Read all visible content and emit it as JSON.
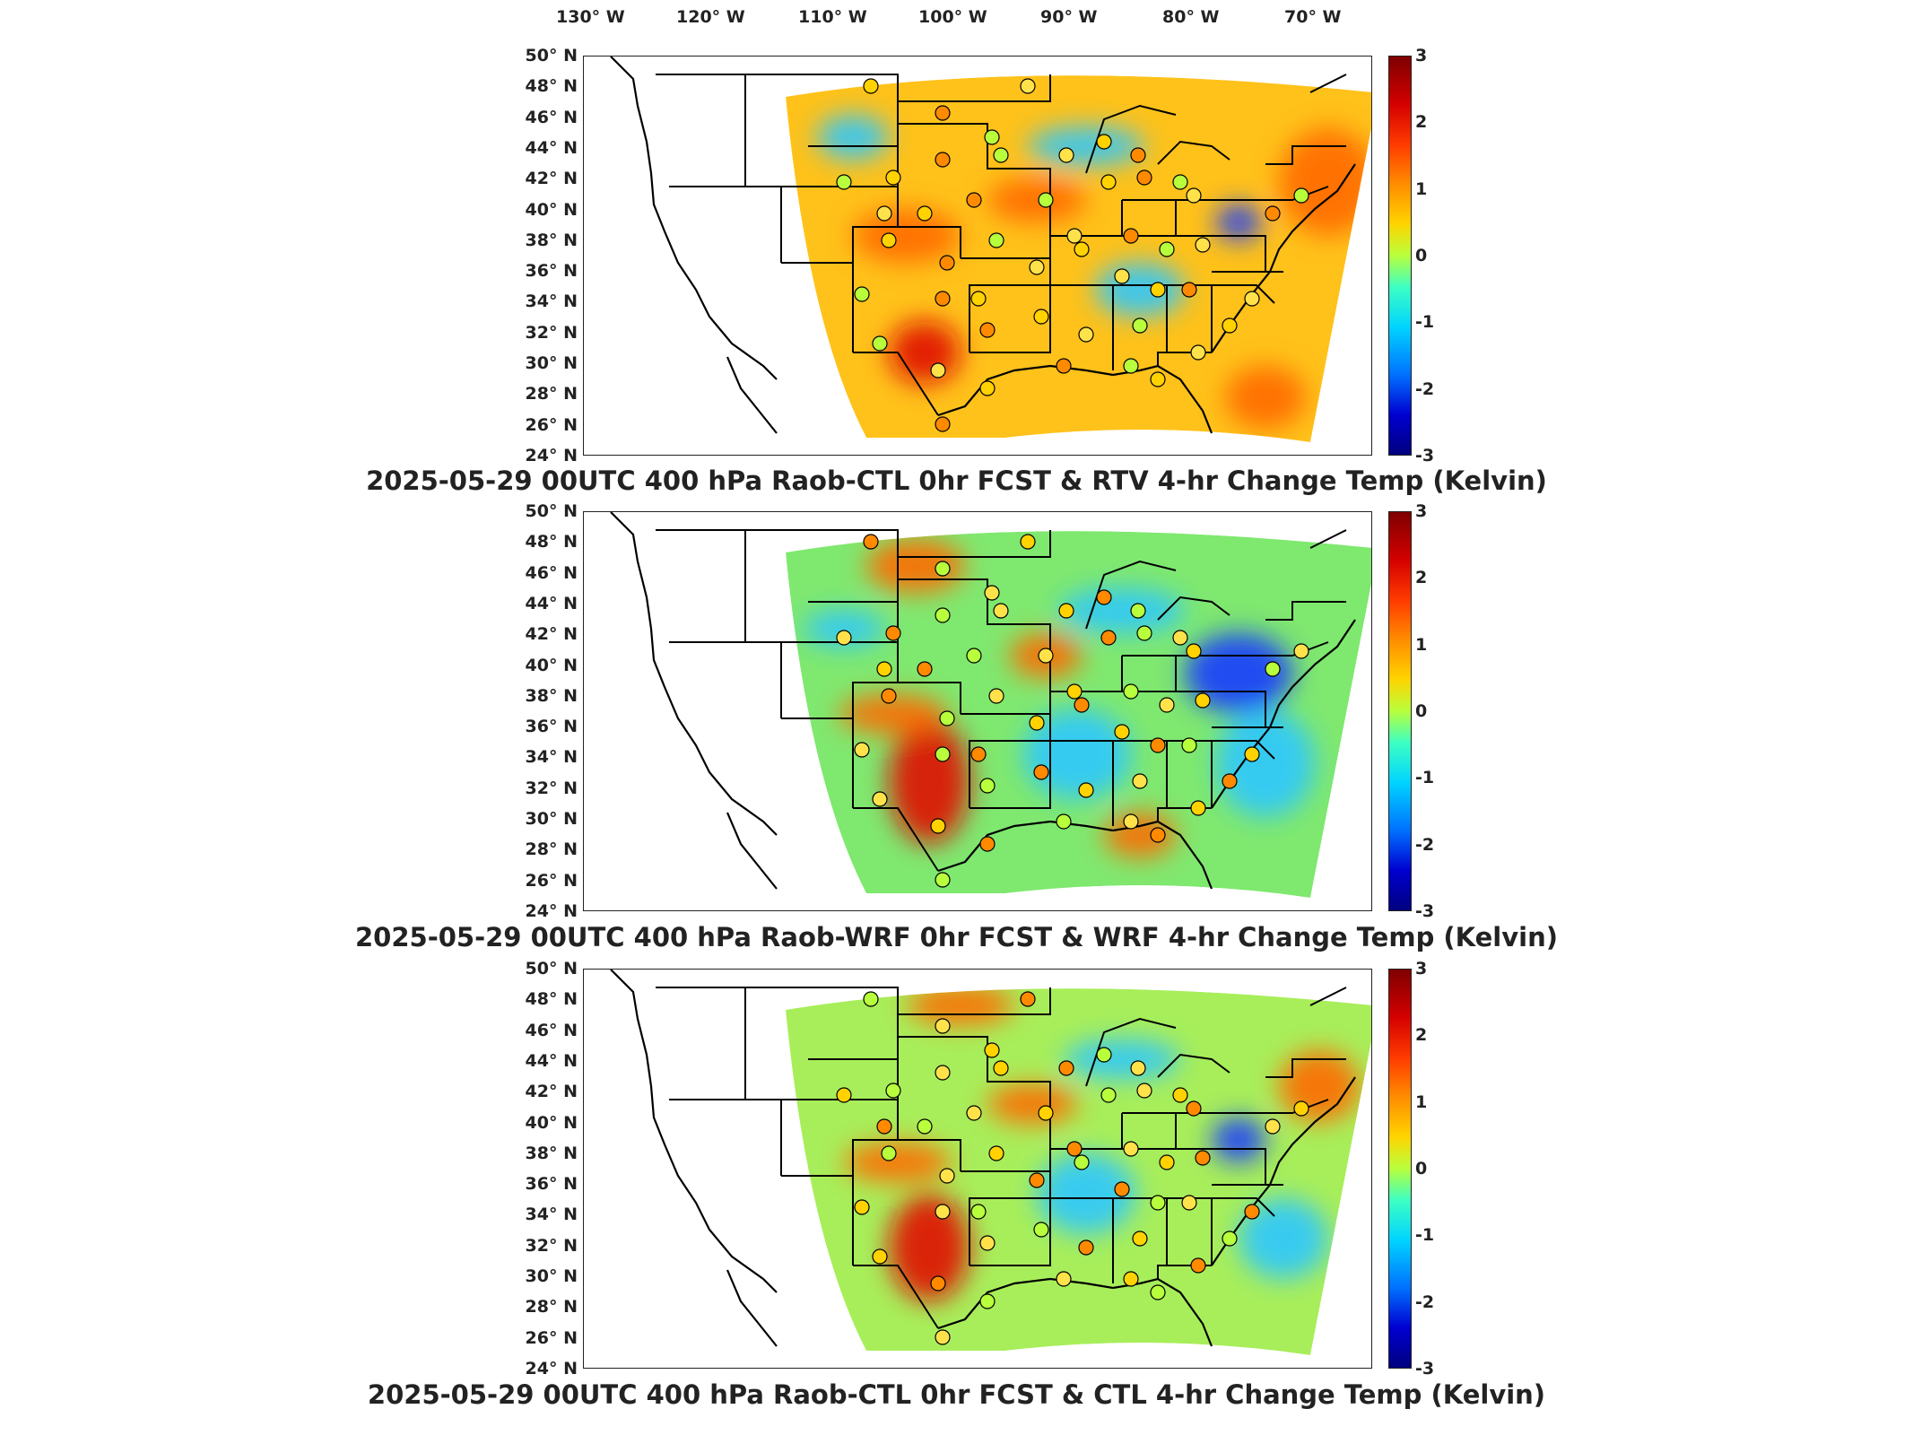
{
  "longitude_labels": [
    "130° W",
    "120° W",
    "110° W",
    "100° W",
    "90° W",
    "80° W",
    "70° W"
  ],
  "latitude_labels": [
    "50° N",
    "48° N",
    "46° N",
    "44° N",
    "42° N",
    "40° N",
    "38° N",
    "36° N",
    "34° N",
    "32° N",
    "30° N",
    "28° N",
    "26° N",
    "24° N"
  ],
  "colorbar": {
    "ticks": [
      "3",
      "2",
      "1",
      "0",
      "-1",
      "-2",
      "-3"
    ],
    "range": [
      -3,
      3
    ],
    "colormap": "jet",
    "colors": [
      "#7f0000",
      "#ff3a00",
      "#ffd400",
      "#b8ff3c",
      "#00d4ff",
      "#0070ff",
      "#00007f"
    ]
  },
  "panels": [
    {
      "title": "2025-05-29 00UTC 400 hPa Raob-CTL 0hr FCST & RTV 4-hr Change Temp (Kelvin)",
      "field_name": "RTV 4-hr Change Temp",
      "base_color": "#ffc21a"
    },
    {
      "title": "2025-05-29 00UTC 400 hPa Raob-WRF 0hr FCST & WRF 4-hr Change Temp (Kelvin)",
      "field_name": "WRF 4-hr Change Temp",
      "base_color": "#7fe86f"
    },
    {
      "title": "2025-05-29 00UTC 400 hPa Raob-CTL 0hr FCST & CTL 4-hr Change Temp (Kelvin)",
      "field_name": "CTL 4-hr Change Temp",
      "base_color": "#a8ee5a"
    }
  ],
  "map_colors": {
    "warm": "#ff6a00",
    "hot": "#e01000",
    "cool": "#2ec8ff",
    "cold": "#1a3cff",
    "borders": "#000000"
  }
}
